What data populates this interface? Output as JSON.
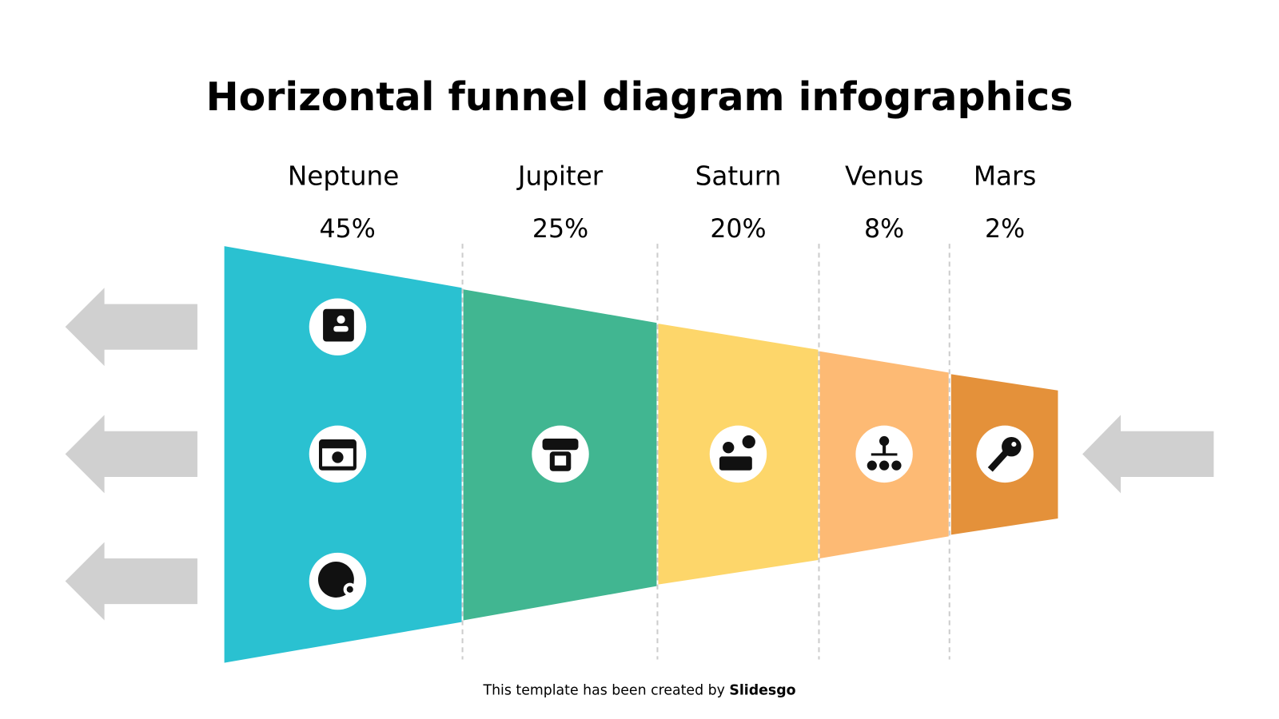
{
  "title": "Horizontal funnel diagram infographics",
  "stages": [
    {
      "label": "Neptune",
      "value": "45%"
    },
    {
      "label": "Jupiter",
      "value": "25%"
    },
    {
      "label": "Saturn",
      "value": "20%"
    },
    {
      "label": "Venus",
      "value": "8%"
    },
    {
      "label": "Mars",
      "value": "2%"
    }
  ],
  "footer": {
    "text": "This template has been created by",
    "brand": "Slidesgo"
  }
}
